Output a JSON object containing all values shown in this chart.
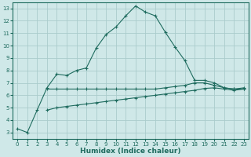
{
  "xlabel": "Humidex (Indice chaleur)",
  "bg_color": "#cfe8e8",
  "grid_color": "#aacccc",
  "line_color": "#1e6b5e",
  "xlim": [
    -0.5,
    23.5
  ],
  "ylim": [
    2.5,
    13.5
  ],
  "yticks": [
    3,
    4,
    5,
    6,
    7,
    8,
    9,
    10,
    11,
    12,
    13
  ],
  "xticks": [
    0,
    1,
    2,
    3,
    4,
    5,
    6,
    7,
    8,
    9,
    10,
    11,
    12,
    13,
    14,
    15,
    16,
    17,
    18,
    19,
    20,
    21,
    22,
    23
  ],
  "line1_x": [
    0,
    1,
    2,
    3,
    4,
    5,
    6,
    7,
    8,
    9,
    10,
    11,
    12,
    13,
    14,
    15,
    16,
    17,
    18,
    19,
    20,
    21,
    22,
    23
  ],
  "line1_y": [
    3.3,
    3.0,
    4.8,
    6.6,
    7.7,
    7.6,
    8.0,
    8.2,
    9.8,
    10.9,
    11.5,
    12.4,
    13.2,
    12.7,
    12.4,
    11.1,
    9.9,
    8.8,
    7.2,
    7.2,
    7.0,
    6.6,
    6.5,
    6.6
  ],
  "line2_x": [
    3,
    4,
    5,
    6,
    7,
    8,
    9,
    10,
    11,
    12,
    13,
    14,
    15,
    16,
    17,
    18,
    19,
    20,
    21,
    22,
    23
  ],
  "line2_y": [
    6.5,
    6.5,
    6.5,
    6.5,
    6.5,
    6.5,
    6.5,
    6.5,
    6.5,
    6.5,
    6.5,
    6.5,
    6.6,
    6.7,
    6.8,
    7.0,
    7.0,
    6.8,
    6.6,
    6.5,
    6.5
  ],
  "line3_x": [
    3,
    4,
    5,
    6,
    7,
    8,
    9,
    10,
    11,
    12,
    13,
    14,
    15,
    16,
    17,
    18,
    19,
    20,
    21,
    22,
    23
  ],
  "line3_y": [
    4.8,
    5.0,
    5.1,
    5.2,
    5.3,
    5.4,
    5.5,
    5.6,
    5.7,
    5.8,
    5.9,
    6.0,
    6.1,
    6.2,
    6.3,
    6.4,
    6.55,
    6.6,
    6.5,
    6.4,
    6.5
  ]
}
